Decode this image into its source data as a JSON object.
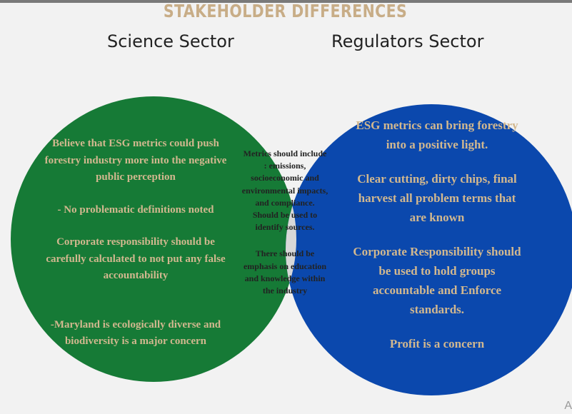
{
  "title": "STAKEHOLDER DIFFERENCES",
  "colors": {
    "title": "#c8ad87",
    "science": "#167a36",
    "regulators": "#0b48ad",
    "overlap": "#d8d8d8",
    "circle_text": "#d2b88f",
    "overlap_text": "#222222"
  },
  "science": {
    "label": "Science Sector",
    "points": [
      "Believe that ESG metrics could push forestry industry more into the negative public perception",
      "- No problematic definitions noted",
      "Corporate responsibility should be carefully calculated to not put any false accountability",
      "-Maryland is ecologically diverse and biodiversity is a major concern"
    ]
  },
  "overlap": {
    "points": [
      "Metrics should include : emissions, socioeconomic and environmental impacts, and compliance. Should be used to identify sources.",
      "There should be emphasis on education and knowledge within the industry"
    ]
  },
  "regulators": {
    "label": "Regulators Sector",
    "points": [
      "ESG metrics can bring forestry into a positive light.",
      "Clear cutting, dirty chips, final harvest all problem terms that are known",
      "Corporate Responsibility should be used to hold groups accountable and Enforce standards.",
      "Profit is a concern"
    ]
  },
  "corner_mark": "A"
}
